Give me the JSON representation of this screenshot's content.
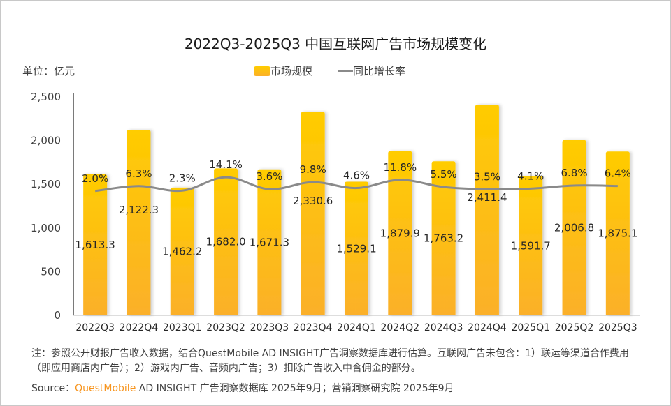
{
  "chart_data": {
    "type": "bar+line",
    "title": "2022Q3-2025Q3 中国互联网广告市场规模变化",
    "unit_label": "单位：亿元",
    "legend_position": "top",
    "categories": [
      "2022Q3",
      "2022Q4",
      "2023Q1",
      "2023Q2",
      "2023Q3",
      "2023Q4",
      "2024Q1",
      "2024Q2",
      "2024Q3",
      "2024Q4",
      "2025Q1",
      "2025Q2",
      "2025Q3"
    ],
    "series": [
      {
        "name": "市场规模",
        "type": "bar",
        "values": [
          1613.3,
          2122.3,
          1462.2,
          1682.0,
          1671.3,
          2330.6,
          1529.1,
          1879.9,
          1763.2,
          2411.4,
          1591.7,
          2006.8,
          1875.1
        ],
        "labels": [
          "1,613.3",
          "2,122.3",
          "1,462.2",
          "1,682.0",
          "1,671.3",
          "2,330.6",
          "1,529.1",
          "1,879.9",
          "1,763.2",
          "2,411.4",
          "1,591.7",
          "2,006.8",
          "1,875.1"
        ],
        "color": "#ffc400"
      },
      {
        "name": "同比增长率",
        "type": "line",
        "axis": "secondary",
        "values": [
          2.0,
          6.3,
          2.3,
          14.1,
          3.6,
          9.8,
          4.6,
          11.8,
          5.5,
          3.5,
          4.1,
          6.8,
          6.4
        ],
        "labels": [
          "2.0%",
          "6.3%",
          "2.3%",
          "14.1%",
          "3.6%",
          "9.8%",
          "4.6%",
          "11.8%",
          "5.5%",
          "3.5%",
          "4.1%",
          "6.8%",
          "6.4%"
        ],
        "color": "#8a8a8a"
      }
    ],
    "ylim": [
      0,
      2500
    ],
    "yticks": [
      0,
      500,
      1000,
      1500,
      2000,
      2500
    ],
    "ytick_labels": [
      "0",
      "500",
      "1,000",
      "1,500",
      "2,000",
      "2,500"
    ],
    "grid": false
  },
  "note": "注：参照公开财报广告收入数据，结合QuestMobile AD INSIGHT广告洞察数据库进行估算。互联网广告未包含：1）联运等渠道合作费用（即应用商店内广告）；2）游戏内广告、音频内广告；3）扣除广告收入中含佣金的部分。",
  "source": {
    "prefix": "Source：",
    "brand": "QuestMobile",
    "rest": " AD INSIGHT 广告洞察数据库 2025年9月；营销洞察研究院 2025年9月"
  }
}
